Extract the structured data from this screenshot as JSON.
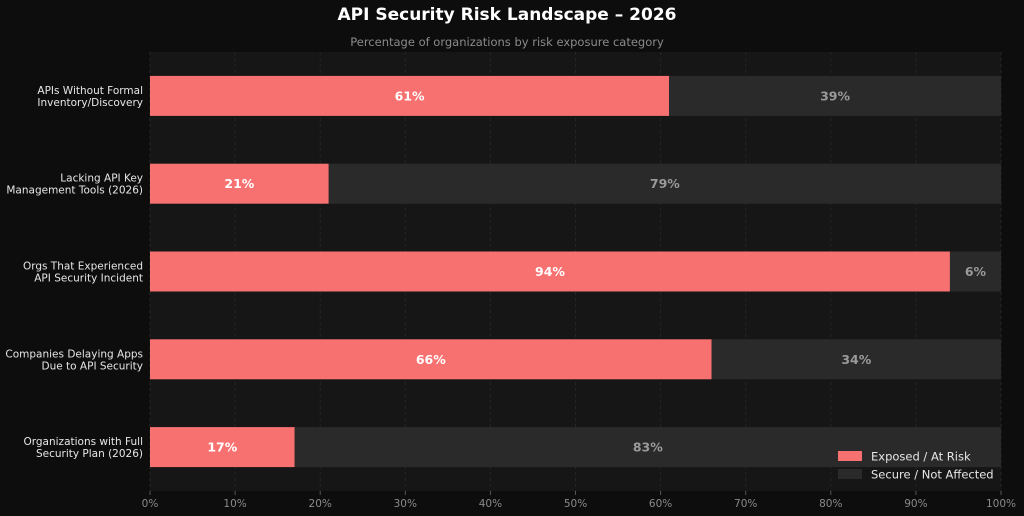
{
  "chart_data": {
    "type": "bar",
    "orientation": "horizontal",
    "stacked": true,
    "title": "API Security Risk Landscape – 2026",
    "subtitle": "Percentage of organizations by risk exposure category",
    "categories": [
      [
        "APIs Without Formal",
        "Inventory/Discovery"
      ],
      [
        "Lacking API Key",
        "Management Tools (2026)"
      ],
      [
        "Orgs That Experienced",
        "API Security Incident"
      ],
      [
        "Companies Delaying Apps",
        "Due to API Security"
      ],
      [
        "Organizations with Full",
        "Security Plan (2026)"
      ]
    ],
    "series": [
      {
        "name": "Exposed / At Risk",
        "values": [
          61,
          21,
          94,
          66,
          17
        ],
        "labels": [
          "61%",
          "21%",
          "94%",
          "66%",
          "17%"
        ],
        "color": "#f87171"
      },
      {
        "name": "Secure / Not Affected",
        "values": [
          39,
          79,
          6,
          34,
          83
        ],
        "labels": [
          "39%",
          "79%",
          "6%",
          "34%",
          "83%"
        ],
        "color": "#2a2a2a"
      }
    ],
    "xlim": [
      0,
      100
    ],
    "xticks": [
      0,
      10,
      20,
      30,
      40,
      50,
      60,
      70,
      80,
      90,
      100
    ],
    "xtick_labels": [
      "0%",
      "10%",
      "20%",
      "30%",
      "40%",
      "50%",
      "60%",
      "70%",
      "80%",
      "90%",
      "100%"
    ],
    "grid": "vertical",
    "legend": "bottom-right",
    "colors": {
      "background": "#0d0d0d",
      "plot_background": "#161616",
      "grid": "#262626"
    }
  }
}
